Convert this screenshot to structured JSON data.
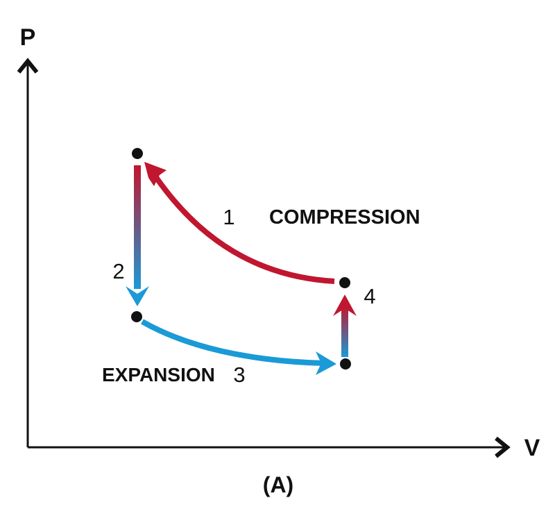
{
  "axes": {
    "y_label": "P",
    "x_label": "V"
  },
  "labels": {
    "compression": "COMPRESSION",
    "expansion": "EXPANSION",
    "figure_label": "(A)"
  },
  "points": {
    "p1": "1",
    "p2": "2",
    "p3": "3",
    "p4": "4"
  },
  "colors": {
    "hot": "#c0162f",
    "cold": "#1a9ad6",
    "ink": "#111111"
  },
  "icons": {
    "axis_arrow": "chevron-arrow-icon",
    "process_arrow": "curved-arrow-icon",
    "state_point": "dot-icon"
  }
}
